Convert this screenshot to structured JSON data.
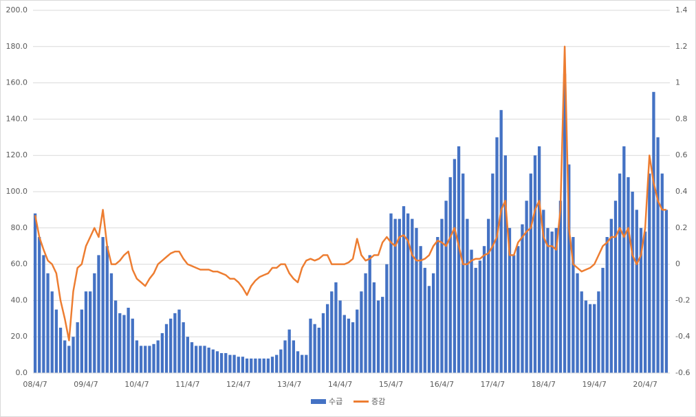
{
  "chart_data": {
    "type": "bar-line",
    "categories": [
      "08/4/7",
      null,
      null,
      null,
      null,
      null,
      null,
      null,
      null,
      null,
      null,
      null,
      "09/4/7",
      null,
      null,
      null,
      null,
      null,
      null,
      null,
      null,
      null,
      null,
      null,
      "10/4/7",
      null,
      null,
      null,
      null,
      null,
      null,
      null,
      null,
      null,
      null,
      null,
      "11/4/7",
      null,
      null,
      null,
      null,
      null,
      null,
      null,
      null,
      null,
      null,
      null,
      "12/4/7",
      null,
      null,
      null,
      null,
      null,
      null,
      null,
      null,
      null,
      null,
      null,
      "13/4/7",
      null,
      null,
      null,
      null,
      null,
      null,
      null,
      null,
      null,
      null,
      null,
      "14/4/7",
      null,
      null,
      null,
      null,
      null,
      null,
      null,
      null,
      null,
      null,
      null,
      "15/4/7",
      null,
      null,
      null,
      null,
      null,
      null,
      null,
      null,
      null,
      null,
      null,
      "16/4/7",
      null,
      null,
      null,
      null,
      null,
      null,
      null,
      null,
      null,
      null,
      null,
      "17/4/7",
      null,
      null,
      null,
      null,
      null,
      null,
      null,
      null,
      null,
      null,
      null,
      "18/4/7",
      null,
      null,
      null,
      null,
      null,
      null,
      null,
      null,
      null,
      null,
      null,
      "19/4/7",
      null,
      null,
      null,
      null,
      null,
      null,
      null,
      null,
      null,
      null,
      null,
      "20/4/7",
      null,
      null,
      null,
      null,
      null
    ],
    "series": [
      {
        "name": "수급",
        "color": "#4472c4",
        "type": "bar",
        "values": [
          88,
          75,
          65,
          55,
          45,
          35,
          25,
          18,
          15,
          20,
          28,
          35,
          45,
          45,
          55,
          65,
          75,
          70,
          55,
          40,
          33,
          32,
          36,
          30,
          18,
          15,
          15,
          15,
          16,
          18,
          22,
          27,
          30,
          33,
          35,
          28,
          20,
          17,
          15,
          15,
          15,
          14,
          13,
          12,
          11,
          11,
          10,
          10,
          9,
          9,
          8,
          8,
          8,
          8,
          8,
          8,
          9,
          10,
          13,
          18,
          24,
          18,
          12,
          10,
          10,
          30,
          27,
          25,
          33,
          38,
          45,
          50,
          40,
          32,
          30,
          28,
          35,
          45,
          55,
          65,
          50,
          40,
          42,
          60,
          88,
          85,
          85,
          92,
          88,
          85,
          80,
          70,
          58,
          48,
          55,
          75,
          85,
          95,
          108,
          118,
          125,
          110,
          85,
          68,
          58,
          62,
          70,
          85,
          110,
          130,
          145,
          120,
          80,
          65,
          70,
          82,
          95,
          110,
          120,
          125,
          90,
          80,
          78,
          80,
          95,
          165,
          115,
          75,
          55,
          45,
          40,
          38,
          38,
          45,
          58,
          75,
          85,
          95,
          110,
          125,
          108,
          100,
          90,
          80,
          78,
          110,
          155,
          130,
          110,
          90
        ]
      },
      {
        "name": "증감",
        "color": "#ed7d31",
        "type": "line",
        "axis": "y2",
        "values": [
          0.27,
          0.15,
          0.08,
          0.02,
          0.0,
          -0.05,
          -0.2,
          -0.3,
          -0.42,
          -0.15,
          -0.02,
          0.0,
          0.1,
          0.15,
          0.2,
          0.15,
          0.3,
          0.1,
          0.0,
          0.0,
          0.02,
          0.05,
          0.07,
          -0.03,
          -0.08,
          -0.1,
          -0.12,
          -0.08,
          -0.05,
          0.0,
          0.02,
          0.04,
          0.06,
          0.07,
          0.07,
          0.03,
          0.0,
          -0.01,
          -0.02,
          -0.03,
          -0.03,
          -0.03,
          -0.04,
          -0.04,
          -0.05,
          -0.06,
          -0.08,
          -0.08,
          -0.1,
          -0.13,
          -0.17,
          -0.12,
          -0.09,
          -0.07,
          -0.06,
          -0.05,
          -0.02,
          -0.02,
          0.0,
          0.0,
          -0.05,
          -0.08,
          -0.1,
          -0.02,
          0.02,
          0.03,
          0.02,
          0.03,
          0.05,
          0.05,
          0.0,
          0.0,
          0.0,
          0.0,
          0.01,
          0.03,
          0.14,
          0.05,
          0.02,
          0.03,
          0.05,
          0.05,
          0.12,
          0.15,
          0.12,
          0.1,
          0.15,
          0.16,
          0.13,
          0.05,
          0.02,
          0.02,
          0.03,
          0.05,
          0.1,
          0.13,
          0.12,
          0.1,
          0.15,
          0.2,
          0.1,
          0.0,
          0.0,
          0.02,
          0.03,
          0.03,
          0.05,
          0.06,
          0.1,
          0.15,
          0.3,
          0.35,
          0.05,
          0.05,
          0.12,
          0.15,
          0.18,
          0.2,
          0.3,
          0.35,
          0.15,
          0.1,
          0.1,
          0.08,
          0.3,
          1.2,
          0.2,
          0.0,
          -0.02,
          -0.04,
          -0.03,
          -0.02,
          0.0,
          0.05,
          0.1,
          0.12,
          0.15,
          0.15,
          0.2,
          0.15,
          0.2,
          0.05,
          0.0,
          0.05,
          0.2,
          0.6,
          0.45,
          0.35,
          0.3,
          0.3
        ]
      }
    ],
    "ylim": [
      0,
      200
    ],
    "yticks": [
      {
        "value": 0,
        "label": "0.0"
      },
      {
        "value": 20,
        "label": "20.0"
      },
      {
        "value": 40,
        "label": "40.0"
      },
      {
        "value": 60,
        "label": "60.0"
      },
      {
        "value": 80,
        "label": "80.0"
      },
      {
        "value": 100,
        "label": "100.0"
      },
      {
        "value": 120,
        "label": "120.0"
      },
      {
        "value": 140,
        "label": "140.0"
      },
      {
        "value": 160,
        "label": "160.0"
      },
      {
        "value": 180,
        "label": "180.0"
      },
      {
        "value": 200,
        "label": "200.0"
      }
    ],
    "y2lim": [
      -0.6,
      1.4
    ],
    "y2ticks": [
      -0.6,
      -0.4,
      -0.2,
      0,
      0.2,
      0.4,
      0.6,
      0.8,
      1.0,
      1.2,
      1.4
    ],
    "grid": true,
    "legend": "bottom"
  }
}
